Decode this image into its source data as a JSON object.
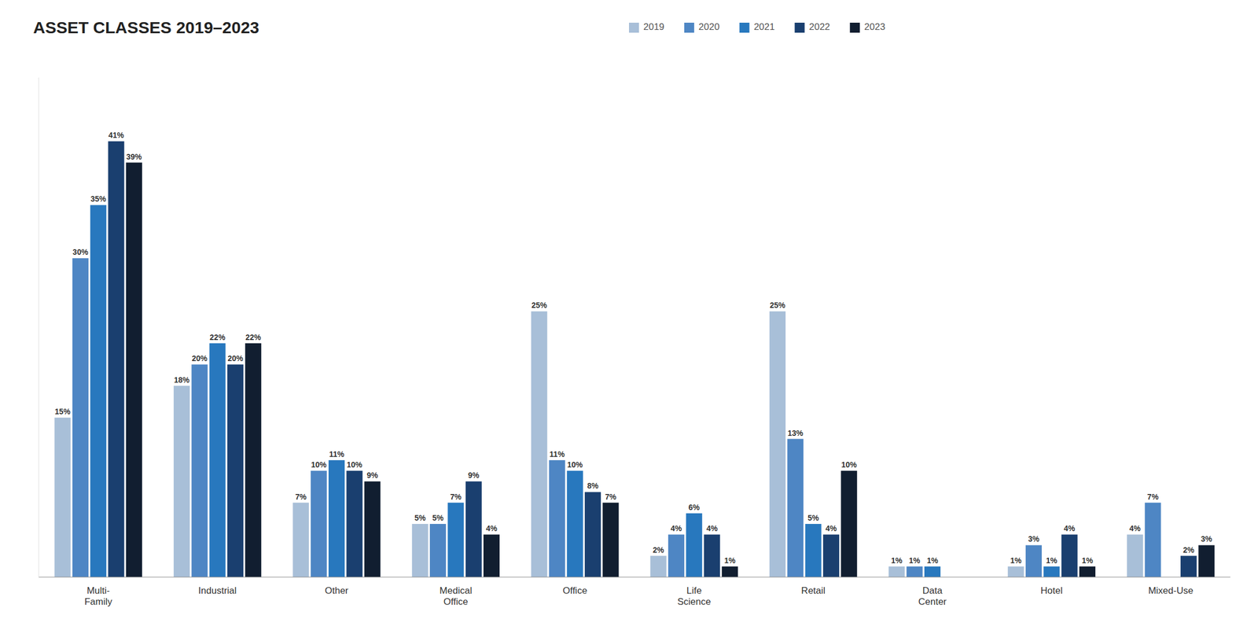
{
  "chart_data": {
    "type": "bar",
    "title": "ASSET CLASSES 2019–2023",
    "categories": [
      "Multi-\nFamily",
      "Industrial",
      "Other",
      "Medical\nOffice",
      "Office",
      "Life\nScience",
      "Retail",
      "Data\nCenter",
      "Hotel",
      "Mixed-Use"
    ],
    "series": [
      {
        "name": "2019",
        "color": "#A8BFD8",
        "values": [
          15,
          18,
          7,
          5,
          25,
          2,
          25,
          1,
          1,
          4
        ],
        "value_labels": [
          "15%",
          "18%",
          "7%",
          "5%",
          "25%",
          "2%",
          "25%",
          "1%",
          "1%",
          "4%"
        ]
      },
      {
        "name": "2020",
        "color": "#4E86C4",
        "values": [
          30,
          20,
          10,
          5,
          11,
          4,
          13,
          1,
          3,
          7
        ],
        "value_labels": [
          "30%",
          "20%",
          "10%",
          "5%",
          "11%",
          "4%",
          "13%",
          "1%",
          "3%",
          "7%"
        ]
      },
      {
        "name": "2021",
        "color": "#2878BE",
        "values": [
          35,
          22,
          11,
          7,
          10,
          6,
          5,
          1,
          1,
          0
        ],
        "value_labels": [
          "35%",
          "22%",
          "11%",
          "7%",
          "10%",
          "6%",
          "5%",
          "1%",
          "1%",
          null
        ]
      },
      {
        "name": "2022",
        "color": "#1A3F6F",
        "values": [
          41,
          20,
          10,
          9,
          8,
          4,
          4,
          0,
          4,
          2
        ],
        "value_labels": [
          "41%",
          "20%",
          "10%",
          "9%",
          "8%",
          "4%",
          "4%",
          null,
          "4%",
          "2%"
        ]
      },
      {
        "name": "2023",
        "color": "#111E30",
        "values": [
          39,
          22,
          9,
          4,
          7,
          1,
          10,
          0,
          1,
          3
        ],
        "value_labels": [
          "39%",
          "22%",
          "9%",
          "4%",
          "7%",
          "1%",
          "10%",
          null,
          "1%",
          "3%"
        ]
      }
    ],
    "ylim": [
      0,
      47
    ],
    "tick_labels": "x",
    "grid": false,
    "legend": "top",
    "data_labels": true
  }
}
